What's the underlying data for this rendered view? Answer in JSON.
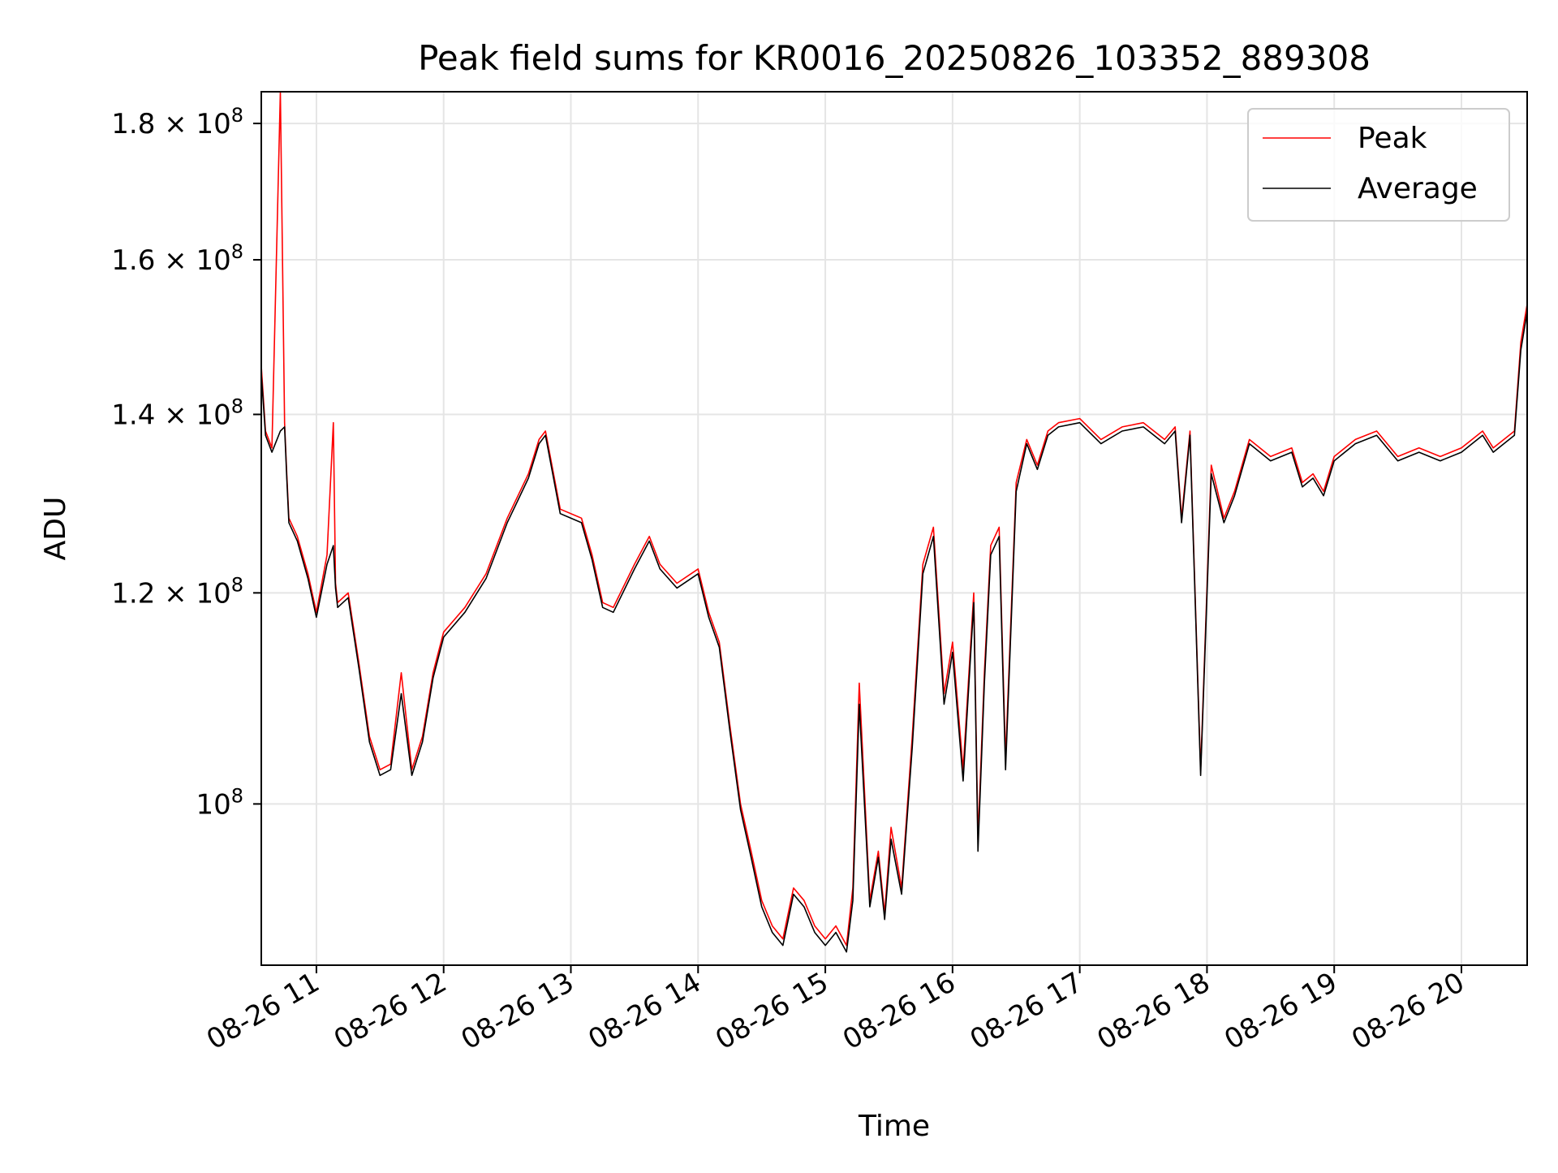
{
  "chart_data": {
    "type": "line",
    "title": "Peak field sums for KR0016_20250826_103352_889308",
    "xlabel": "Time",
    "ylabel": "ADU",
    "yscale": "log",
    "grid": true,
    "legend_position": "top-right",
    "xlim": [
      "2026-08-26T10:34",
      "2026-08-26T20:31"
    ],
    "ylim": [
      87000000,
      185000000
    ],
    "x_ticks": [
      {
        "value": "2026-08-26T11:00",
        "label": "08-26 11"
      },
      {
        "value": "2026-08-26T12:00",
        "label": "08-26 12"
      },
      {
        "value": "2026-08-26T13:00",
        "label": "08-26 13"
      },
      {
        "value": "2026-08-26T14:00",
        "label": "08-26 14"
      },
      {
        "value": "2026-08-26T15:00",
        "label": "08-26 15"
      },
      {
        "value": "2026-08-26T16:00",
        "label": "08-26 16"
      },
      {
        "value": "2026-08-26T17:00",
        "label": "08-26 17"
      },
      {
        "value": "2026-08-26T18:00",
        "label": "08-26 18"
      },
      {
        "value": "2026-08-26T19:00",
        "label": "08-26 19"
      },
      {
        "value": "2026-08-26T20:00",
        "label": "08-26 20"
      }
    ],
    "y_ticks": [
      {
        "value": 100000000,
        "base": "10",
        "exp": "8"
      },
      {
        "value": 120000000,
        "base": "1.2 × 10",
        "exp": "8"
      },
      {
        "value": 140000000,
        "base": "1.4 × 10",
        "exp": "8"
      },
      {
        "value": 160000000,
        "base": "1.6 × 10",
        "exp": "8"
      },
      {
        "value": 180000000,
        "base": "1.8 × 10",
        "exp": "8"
      }
    ],
    "series": [
      {
        "name": "Peak",
        "color": "#ff0000",
        "x": [
          "2026-08-26T10:34",
          "2026-08-26T10:36",
          "2026-08-26T10:39",
          "2026-08-26T10:43",
          "2026-08-26T10:45",
          "2026-08-26T10:46",
          "2026-08-26T10:47",
          "2026-08-26T10:51",
          "2026-08-26T10:56",
          "2026-08-26T11:00",
          "2026-08-26T11:05",
          "2026-08-26T11:08",
          "2026-08-26T11:09",
          "2026-08-26T11:10",
          "2026-08-26T11:15",
          "2026-08-26T11:20",
          "2026-08-26T11:25",
          "2026-08-26T11:30",
          "2026-08-26T11:35",
          "2026-08-26T11:40",
          "2026-08-26T11:45",
          "2026-08-26T11:50",
          "2026-08-26T11:55",
          "2026-08-26T12:00",
          "2026-08-26T12:10",
          "2026-08-26T12:20",
          "2026-08-26T12:30",
          "2026-08-26T12:40",
          "2026-08-26T12:45",
          "2026-08-26T12:48",
          "2026-08-26T12:55",
          "2026-08-26T13:05",
          "2026-08-26T13:10",
          "2026-08-26T13:15",
          "2026-08-26T13:20",
          "2026-08-26T13:30",
          "2026-08-26T13:37",
          "2026-08-26T13:42",
          "2026-08-26T13:50",
          "2026-08-26T14:00",
          "2026-08-26T14:05",
          "2026-08-26T14:10",
          "2026-08-26T14:15",
          "2026-08-26T14:20",
          "2026-08-26T14:25",
          "2026-08-26T14:30",
          "2026-08-26T14:35",
          "2026-08-26T14:40",
          "2026-08-26T14:45",
          "2026-08-26T14:50",
          "2026-08-26T14:55",
          "2026-08-26T15:00",
          "2026-08-26T15:05",
          "2026-08-26T15:10",
          "2026-08-26T15:13",
          "2026-08-26T15:16",
          "2026-08-26T15:21",
          "2026-08-26T15:25",
          "2026-08-26T15:28",
          "2026-08-26T15:31",
          "2026-08-26T15:36",
          "2026-08-26T15:41",
          "2026-08-26T15:46",
          "2026-08-26T15:51",
          "2026-08-26T15:56",
          "2026-08-26T16:00",
          "2026-08-26T16:05",
          "2026-08-26T16:10",
          "2026-08-26T16:12",
          "2026-08-26T16:15",
          "2026-08-26T16:18",
          "2026-08-26T16:22",
          "2026-08-26T16:25",
          "2026-08-26T16:30",
          "2026-08-26T16:35",
          "2026-08-26T16:40",
          "2026-08-26T16:45",
          "2026-08-26T16:50",
          "2026-08-26T17:00",
          "2026-08-26T17:10",
          "2026-08-26T17:20",
          "2026-08-26T17:30",
          "2026-08-26T17:40",
          "2026-08-26T17:45",
          "2026-08-26T17:48",
          "2026-08-26T17:52",
          "2026-08-26T17:57",
          "2026-08-26T18:02",
          "2026-08-26T18:08",
          "2026-08-26T18:13",
          "2026-08-26T18:20",
          "2026-08-26T18:30",
          "2026-08-26T18:40",
          "2026-08-26T18:45",
          "2026-08-26T18:50",
          "2026-08-26T18:55",
          "2026-08-26T19:00",
          "2026-08-26T19:10",
          "2026-08-26T19:20",
          "2026-08-26T19:30",
          "2026-08-26T19:40",
          "2026-08-26T19:50",
          "2026-08-26T20:00",
          "2026-08-26T20:05",
          "2026-08-26T20:10",
          "2026-08-26T20:15",
          "2026-08-26T20:20",
          "2026-08-26T20:25",
          "2026-08-26T20:28",
          "2026-08-26T20:31"
        ],
        "values": [
          146000000,
          138000000,
          136000000,
          185000000,
          139000000,
          133000000,
          128000000,
          126000000,
          122000000,
          118000000,
          124000000,
          139000000,
          121000000,
          119000000,
          120000000,
          113000000,
          106000000,
          103000000,
          103500000,
          112000000,
          103000000,
          106000000,
          112000000,
          116000000,
          118500000,
          122000000,
          128000000,
          133000000,
          137000000,
          138000000,
          129000000,
          128000000,
          124000000,
          119000000,
          118500000,
          123000000,
          126000000,
          123000000,
          121000000,
          122500000,
          118000000,
          115000000,
          107000000,
          100000000,
          96000000,
          92000000,
          90000000,
          89000000,
          93000000,
          92000000,
          90000000,
          89000000,
          90000000,
          88500000,
          93000000,
          111000000,
          92000000,
          96000000,
          91000000,
          98000000,
          93000000,
          106000000,
          123000000,
          127000000,
          110000000,
          115000000,
          103000000,
          120000000,
          97000000,
          112000000,
          125000000,
          127000000,
          104000000,
          132000000,
          137000000,
          134000000,
          138000000,
          139000000,
          139500000,
          137000000,
          138500000,
          139000000,
          137000000,
          138500000,
          128000000,
          138000000,
          103000000,
          134000000,
          128000000,
          131000000,
          137000000,
          135000000,
          136000000,
          132000000,
          133000000,
          131000000,
          135000000,
          137000000,
          138000000,
          135000000,
          136000000,
          135000000,
          136000000,
          137000000,
          138000000,
          136000000,
          137000000,
          138000000,
          149000000,
          154000000
        ]
      },
      {
        "name": "Average",
        "color": "#000000",
        "x": [
          "2026-08-26T10:34",
          "2026-08-26T10:36",
          "2026-08-26T10:39",
          "2026-08-26T10:43",
          "2026-08-26T10:45",
          "2026-08-26T10:46",
          "2026-08-26T10:47",
          "2026-08-26T10:51",
          "2026-08-26T10:56",
          "2026-08-26T11:00",
          "2026-08-26T11:05",
          "2026-08-26T11:08",
          "2026-08-26T11:09",
          "2026-08-26T11:10",
          "2026-08-26T11:15",
          "2026-08-26T11:20",
          "2026-08-26T11:25",
          "2026-08-26T11:30",
          "2026-08-26T11:35",
          "2026-08-26T11:40",
          "2026-08-26T11:45",
          "2026-08-26T11:50",
          "2026-08-26T11:55",
          "2026-08-26T12:00",
          "2026-08-26T12:10",
          "2026-08-26T12:20",
          "2026-08-26T12:30",
          "2026-08-26T12:40",
          "2026-08-26T12:45",
          "2026-08-26T12:48",
          "2026-08-26T12:55",
          "2026-08-26T13:05",
          "2026-08-26T13:10",
          "2026-08-26T13:15",
          "2026-08-26T13:20",
          "2026-08-26T13:30",
          "2026-08-26T13:37",
          "2026-08-26T13:42",
          "2026-08-26T13:50",
          "2026-08-26T14:00",
          "2026-08-26T14:05",
          "2026-08-26T14:10",
          "2026-08-26T14:15",
          "2026-08-26T14:20",
          "2026-08-26T14:25",
          "2026-08-26T14:30",
          "2026-08-26T14:35",
          "2026-08-26T14:40",
          "2026-08-26T14:45",
          "2026-08-26T14:50",
          "2026-08-26T14:55",
          "2026-08-26T15:00",
          "2026-08-26T15:05",
          "2026-08-26T15:10",
          "2026-08-26T15:13",
          "2026-08-26T15:16",
          "2026-08-26T15:21",
          "2026-08-26T15:25",
          "2026-08-26T15:28",
          "2026-08-26T15:31",
          "2026-08-26T15:36",
          "2026-08-26T15:41",
          "2026-08-26T15:46",
          "2026-08-26T15:51",
          "2026-08-26T15:56",
          "2026-08-26T16:00",
          "2026-08-26T16:05",
          "2026-08-26T16:10",
          "2026-08-26T16:12",
          "2026-08-26T16:15",
          "2026-08-26T16:18",
          "2026-08-26T16:22",
          "2026-08-26T16:25",
          "2026-08-26T16:30",
          "2026-08-26T16:35",
          "2026-08-26T16:40",
          "2026-08-26T16:45",
          "2026-08-26T16:50",
          "2026-08-26T17:00",
          "2026-08-26T17:10",
          "2026-08-26T17:20",
          "2026-08-26T17:30",
          "2026-08-26T17:40",
          "2026-08-26T17:45",
          "2026-08-26T17:48",
          "2026-08-26T17:52",
          "2026-08-26T17:57",
          "2026-08-26T18:02",
          "2026-08-26T18:08",
          "2026-08-26T18:13",
          "2026-08-26T18:20",
          "2026-08-26T18:30",
          "2026-08-26T18:40",
          "2026-08-26T18:45",
          "2026-08-26T18:50",
          "2026-08-26T18:55",
          "2026-08-26T19:00",
          "2026-08-26T19:10",
          "2026-08-26T19:20",
          "2026-08-26T19:30",
          "2026-08-26T19:40",
          "2026-08-26T19:50",
          "2026-08-26T20:00",
          "2026-08-26T20:05",
          "2026-08-26T20:10",
          "2026-08-26T20:15",
          "2026-08-26T20:20",
          "2026-08-26T20:25",
          "2026-08-26T20:28",
          "2026-08-26T20:31"
        ],
        "values": [
          145000000,
          137500000,
          135500000,
          138000000,
          138500000,
          132500000,
          127500000,
          125500000,
          121500000,
          117500000,
          123000000,
          125000000,
          120500000,
          118500000,
          119500000,
          112500000,
          105500000,
          102500000,
          103000000,
          110000000,
          102500000,
          105500000,
          111500000,
          115500000,
          118000000,
          121500000,
          127500000,
          132500000,
          136500000,
          137500000,
          128500000,
          127500000,
          123500000,
          118500000,
          118000000,
          122500000,
          125500000,
          122500000,
          120500000,
          122000000,
          117500000,
          114500000,
          106500000,
          99500000,
          95500000,
          91500000,
          89500000,
          88500000,
          92500000,
          91500000,
          89500000,
          88500000,
          89500000,
          88000000,
          92000000,
          109000000,
          91500000,
          95500000,
          90500000,
          97000000,
          92500000,
          105000000,
          122000000,
          126000000,
          109000000,
          114000000,
          102000000,
          119000000,
          96000000,
          111000000,
          124000000,
          126000000,
          103000000,
          131000000,
          136500000,
          133500000,
          137500000,
          138500000,
          139000000,
          136500000,
          138000000,
          138500000,
          136500000,
          138000000,
          127500000,
          137500000,
          102500000,
          133000000,
          127500000,
          130500000,
          136500000,
          134500000,
          135500000,
          131500000,
          132500000,
          130500000,
          134500000,
          136500000,
          137500000,
          134500000,
          135500000,
          134500000,
          135500000,
          136500000,
          137500000,
          135500000,
          136500000,
          137500000,
          148000000,
          153000000
        ]
      }
    ]
  }
}
